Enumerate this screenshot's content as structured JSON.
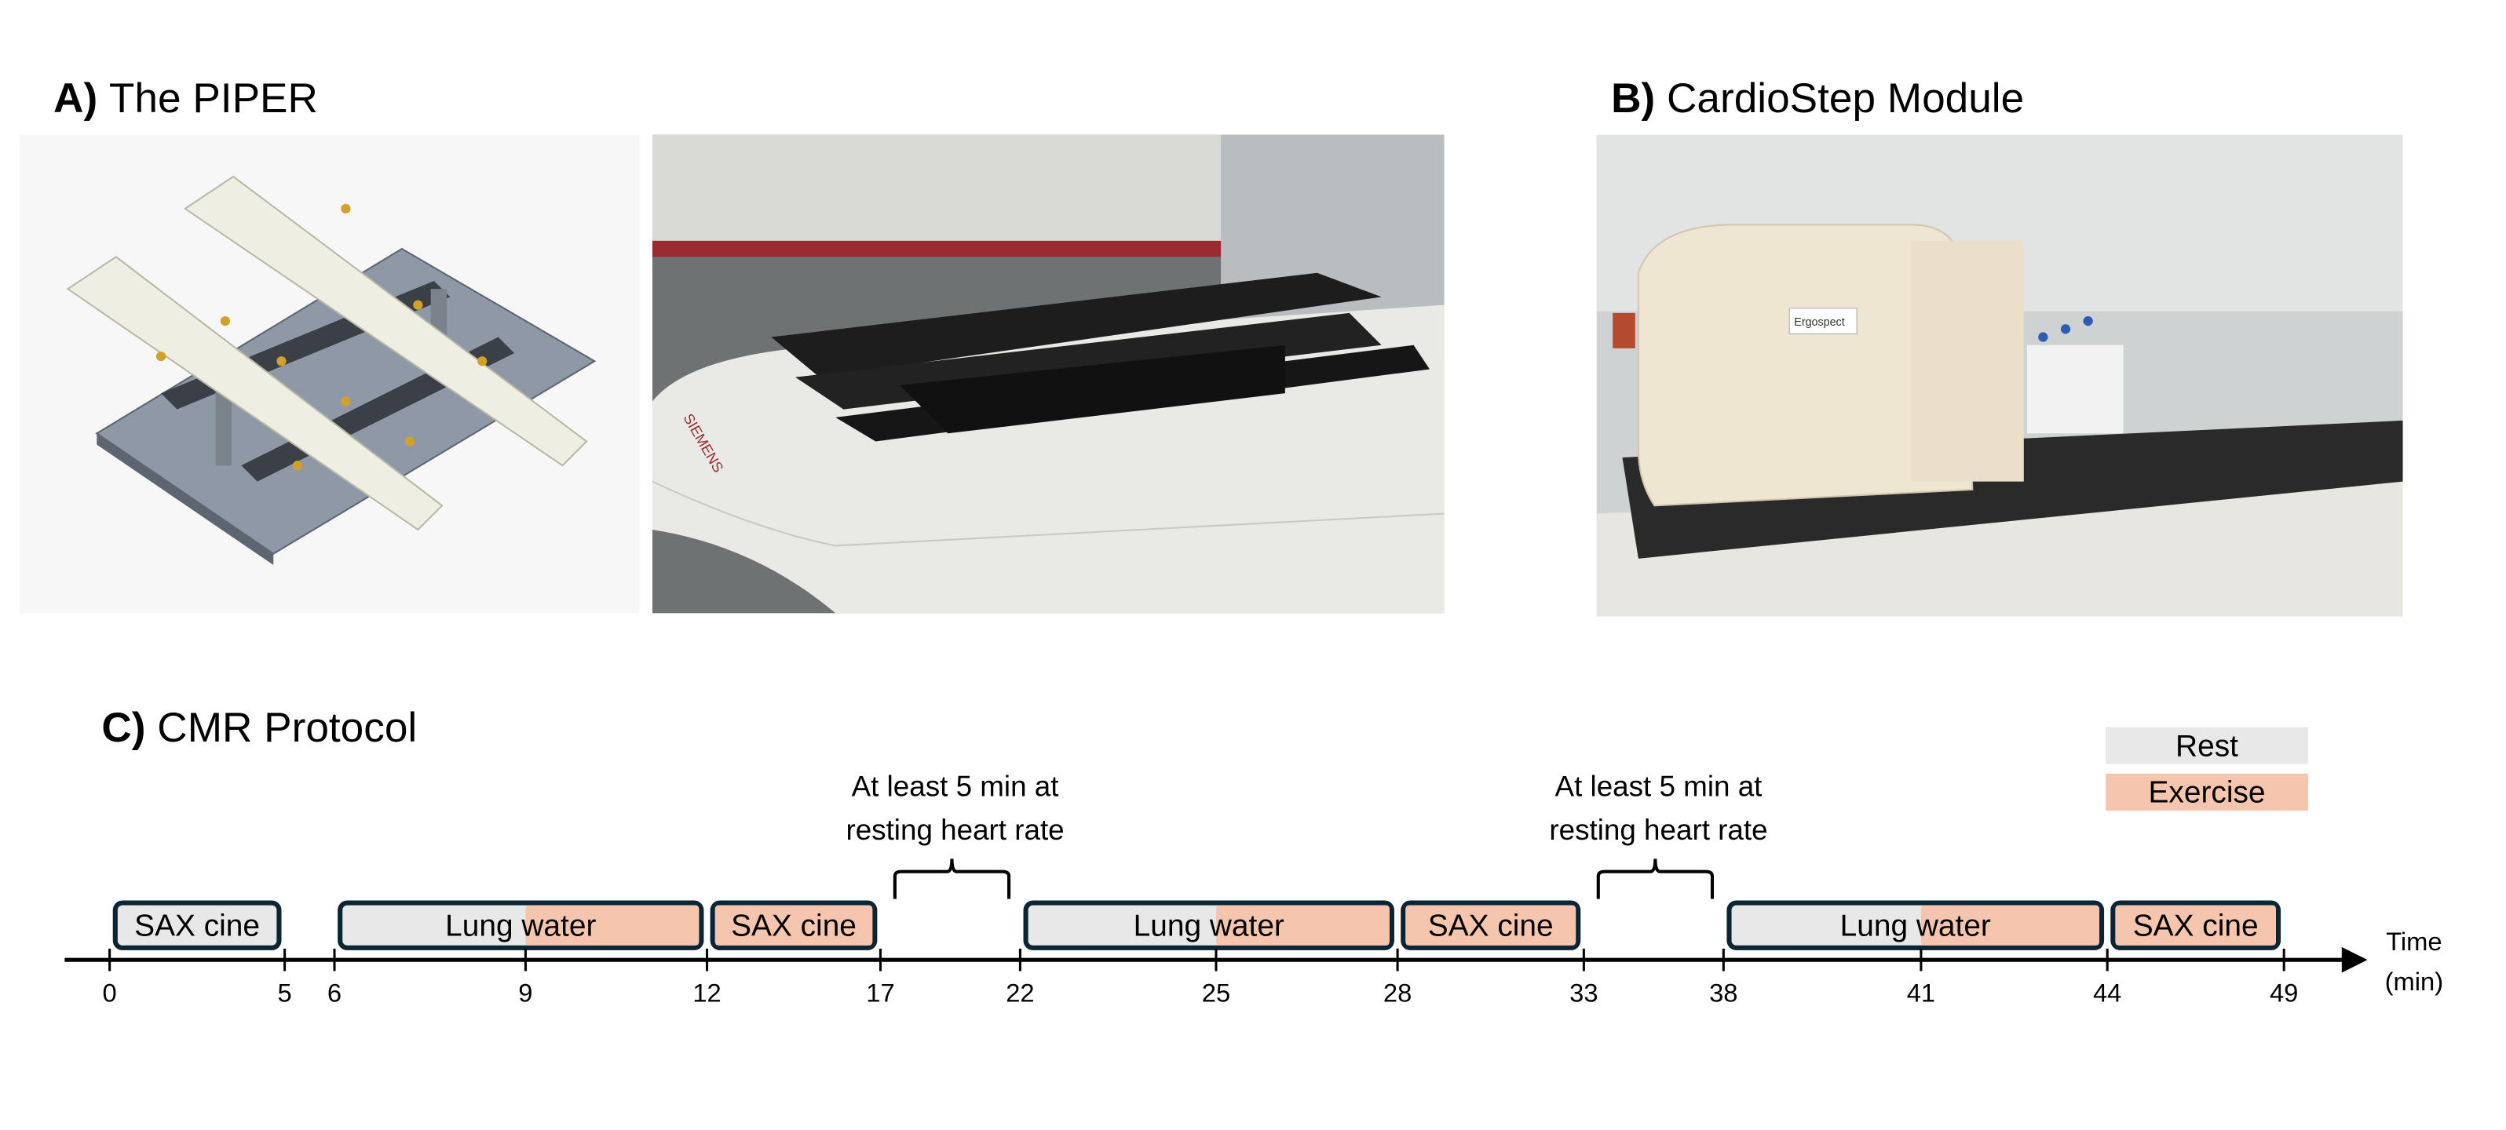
{
  "panels": {
    "a": {
      "letter": "A)",
      "title": "The PIPER"
    },
    "b": {
      "letter": "B)",
      "title": "CardioStep Module"
    },
    "c": {
      "letter": "C)",
      "title": "CMR Protocol"
    }
  },
  "photo_labels": {
    "scanner_brand": "SIEMENS",
    "module_brand": "Ergospect"
  },
  "legend": {
    "rest": "Rest",
    "exercise": "Exercise"
  },
  "colors": {
    "rest": "#e8e8e8",
    "exercise": "#f5c6ad",
    "border": "#0b2535"
  },
  "protocol": {
    "blocks": [
      {
        "label": "SAX cine",
        "start": 0,
        "end": 5,
        "exercise_from": null
      },
      {
        "label": "Lung water",
        "start": 6,
        "end": 12,
        "exercise_from": 9
      },
      {
        "label": "SAX cine",
        "start": 12,
        "end": 17,
        "exercise_from": 12
      },
      {
        "label": "Lung water",
        "start": 22,
        "end": 28,
        "exercise_from": 25
      },
      {
        "label": "SAX cine",
        "start": 28,
        "end": 33,
        "exercise_from": 28
      },
      {
        "label": "Lung water",
        "start": 38,
        "end": 44,
        "exercise_from": 41
      },
      {
        "label": "SAX cine",
        "start": 44,
        "end": 49,
        "exercise_from": 44
      }
    ],
    "ticks": [
      "0",
      "5",
      "6",
      "9",
      "12",
      "17",
      "22",
      "25",
      "28",
      "33",
      "38",
      "41",
      "44",
      "49"
    ],
    "rest_notes": [
      {
        "line1": "At least 5 min at",
        "line2": "resting heart rate",
        "start": 17,
        "end": 22
      },
      {
        "line1": "At least 5 min at",
        "line2": "resting heart rate",
        "start": 33,
        "end": 38
      }
    ],
    "axis_label_line1": "Time",
    "axis_label_line2": "(min)"
  }
}
